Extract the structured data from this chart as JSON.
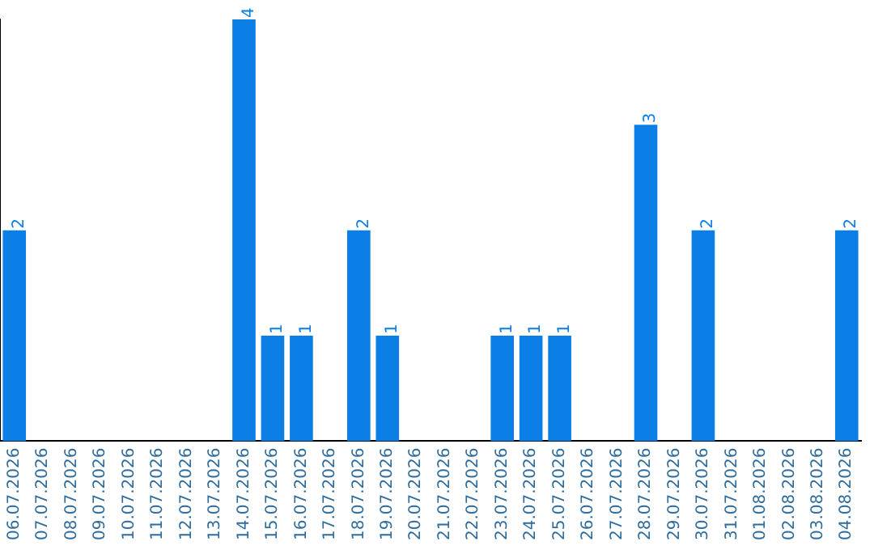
{
  "chart_data": {
    "type": "bar",
    "categories": [
      "06.07.2026",
      "07.07.2026",
      "08.07.2026",
      "09.07.2026",
      "10.07.2026",
      "11.07.2026",
      "12.07.2026",
      "13.07.2026",
      "14.07.2026",
      "15.07.2026",
      "16.07.2026",
      "17.07.2026",
      "18.07.2026",
      "19.07.2026",
      "20.07.2026",
      "21.07.2026",
      "22.07.2026",
      "23.07.2026",
      "24.07.2026",
      "25.07.2026",
      "26.07.2026",
      "27.07.2026",
      "28.07.2026",
      "29.07.2026",
      "30.07.2026",
      "31.07.2026",
      "01.08.2026",
      "02.08.2026",
      "03.08.2026",
      "04.08.2026"
    ],
    "values": [
      2,
      0,
      0,
      0,
      0,
      0,
      0,
      0,
      4,
      1,
      1,
      0,
      2,
      1,
      0,
      0,
      0,
      1,
      1,
      1,
      0,
      0,
      3,
      0,
      2,
      0,
      0,
      0,
      0,
      2
    ],
    "value_labels": [
      "2",
      null,
      null,
      null,
      null,
      null,
      null,
      null,
      "4",
      "1",
      "1",
      null,
      "2",
      "1",
      null,
      null,
      null,
      "1",
      "1",
      "1",
      null,
      null,
      "3",
      null,
      "2",
      null,
      null,
      null,
      null,
      "2"
    ],
    "color": "#0b7fe6",
    "tick_labels": "x"
  }
}
